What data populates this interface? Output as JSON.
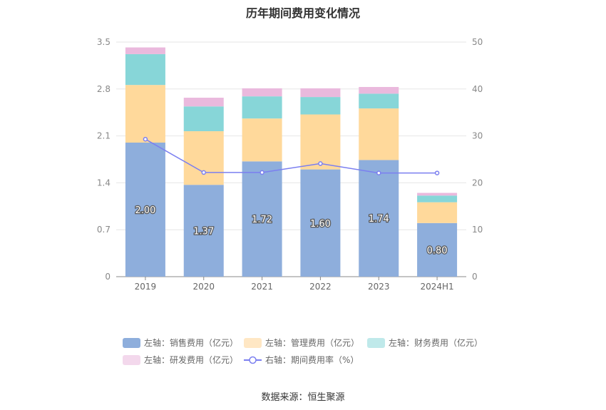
{
  "title": "历年期间费用变化情况",
  "source": "数据来源：恒生聚源",
  "chart_data": {
    "type": "bar",
    "stacked": true,
    "categories": [
      "2019",
      "2020",
      "2021",
      "2022",
      "2023",
      "2024H1"
    ],
    "y_left": {
      "ticks": [
        "0",
        "0.7",
        "1.4",
        "2.1",
        "2.8",
        "3.5"
      ],
      "ylim": [
        0,
        3.5
      ]
    },
    "y_right": {
      "ticks": [
        "0",
        "10",
        "20",
        "30",
        "40",
        "50"
      ],
      "ylim": [
        0,
        50
      ]
    },
    "grid": true,
    "legend_position": "bottom",
    "series": [
      {
        "name": "左轴：销售费用（亿元）",
        "axis": "left",
        "type": "bar",
        "color": "#8eaedc",
        "values": [
          2.0,
          1.37,
          1.72,
          1.6,
          1.74,
          0.8
        ],
        "labels": [
          "2.00",
          "1.37",
          "1.72",
          "1.60",
          "1.74",
          "0.80"
        ]
      },
      {
        "name": "左轴：管理费用（亿元）",
        "axis": "left",
        "type": "bar",
        "color": "#ffd99b",
        "values": [
          0.86,
          0.8,
          0.64,
          0.82,
          0.77,
          0.31
        ]
      },
      {
        "name": "左轴：财务费用（亿元）",
        "axis": "left",
        "type": "bar",
        "color": "#87d6d8",
        "values": [
          0.46,
          0.37,
          0.33,
          0.26,
          0.22,
          0.1
        ]
      },
      {
        "name": "左轴：研发费用（亿元）",
        "axis": "left",
        "type": "bar",
        "color": "#eab9dd",
        "values": [
          0.1,
          0.13,
          0.12,
          0.13,
          0.1,
          0.04
        ]
      },
      {
        "name": "右轴：期间费用率（%）",
        "axis": "right",
        "type": "line",
        "color": "#7b7ff0",
        "values": [
          29.3,
          22.2,
          22.2,
          24.1,
          22.1,
          22.1
        ]
      }
    ]
  }
}
